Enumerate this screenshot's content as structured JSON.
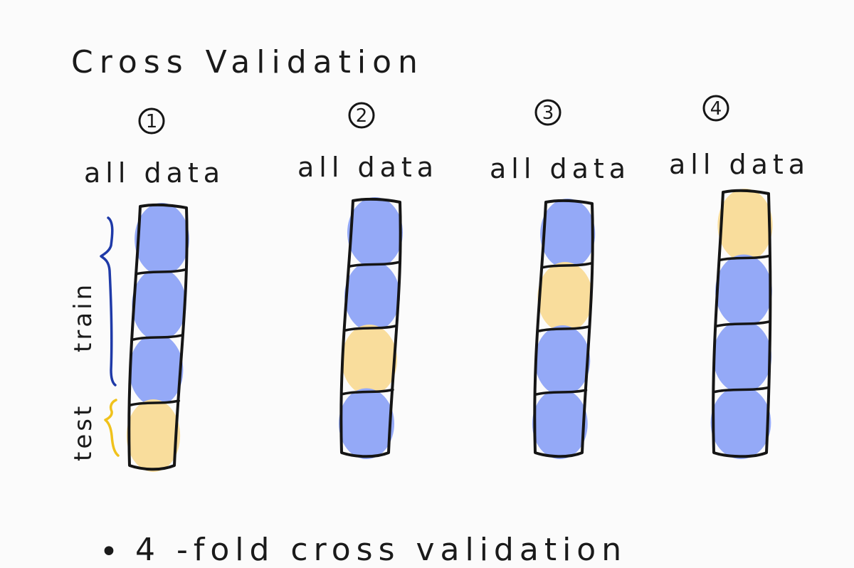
{
  "title": "Cross Validation",
  "folds": [
    {
      "number": "1",
      "label": "all data",
      "segments": [
        "train",
        "train",
        "train",
        "test"
      ]
    },
    {
      "number": "2",
      "label": "all data",
      "segments": [
        "train",
        "train",
        "test",
        "train"
      ]
    },
    {
      "number": "3",
      "label": "all data",
      "segments": [
        "train",
        "test",
        "train",
        "train"
      ]
    },
    {
      "number": "4",
      "label": "all data",
      "segments": [
        "test",
        "train",
        "train",
        "train"
      ]
    }
  ],
  "legend": {
    "train": "train",
    "test": "test"
  },
  "colors": {
    "train": "#94a9f7",
    "test": "#f9dd9c",
    "train_label": "#1f3aa8",
    "test_label": "#f0c21c",
    "ink": "#151515"
  },
  "footer": {
    "bullet": "•",
    "text": "4 -fold cross validation"
  }
}
